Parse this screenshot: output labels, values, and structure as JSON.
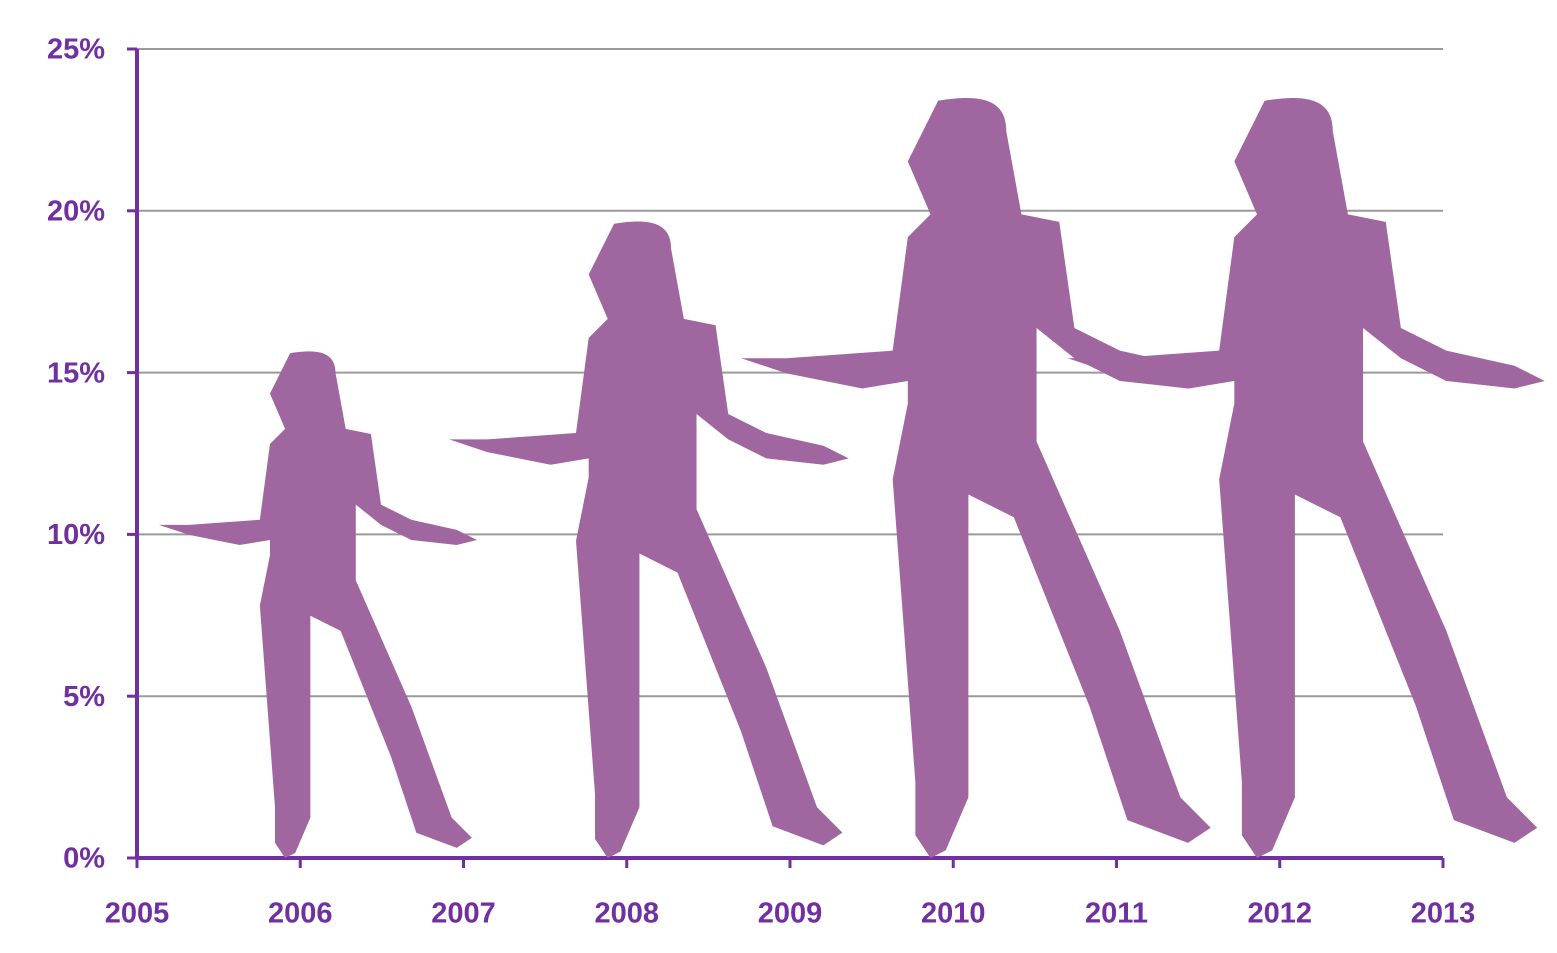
{
  "chart_data": {
    "type": "pictograph",
    "x": [
      2006,
      2008,
      2010,
      2012
    ],
    "values": [
      15.6,
      19.6,
      23.4,
      23.4
    ],
    "color": "#a066a0",
    "axis_color": "#7030a0",
    "xlim": [
      2005,
      2013
    ],
    "xticks": [
      2005,
      2006,
      2007,
      2008,
      2009,
      2010,
      2011,
      2012,
      2013
    ],
    "ylim": [
      0,
      25
    ],
    "yticks": [
      {
        "value": 0,
        "label": "0%"
      },
      {
        "value": 5,
        "label": "5%"
      },
      {
        "value": 10,
        "label": "10%"
      },
      {
        "value": 15,
        "label": "15%"
      },
      {
        "value": 20,
        "label": "20%"
      },
      {
        "value": 25,
        "label": "25%"
      }
    ],
    "grid": true
  }
}
